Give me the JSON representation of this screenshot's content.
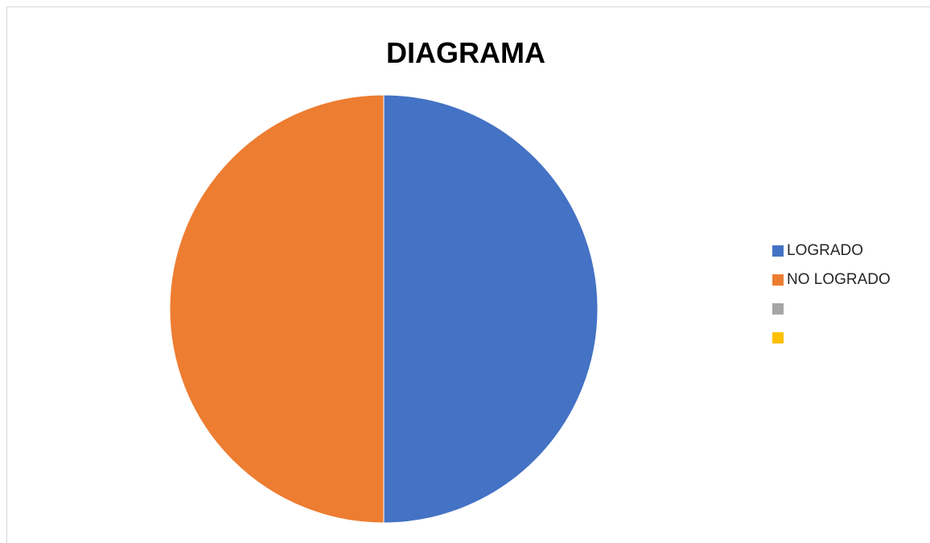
{
  "chart_data": {
    "type": "pie",
    "title": "DIAGRAMA",
    "categories": [
      "LOGRADO",
      "NO LOGRADO",
      "",
      ""
    ],
    "values": [
      50,
      50,
      0,
      0
    ],
    "colors": [
      "#4472c4",
      "#ed7d31",
      "#a5a5a5",
      "#ffc000"
    ],
    "legend": "right"
  }
}
